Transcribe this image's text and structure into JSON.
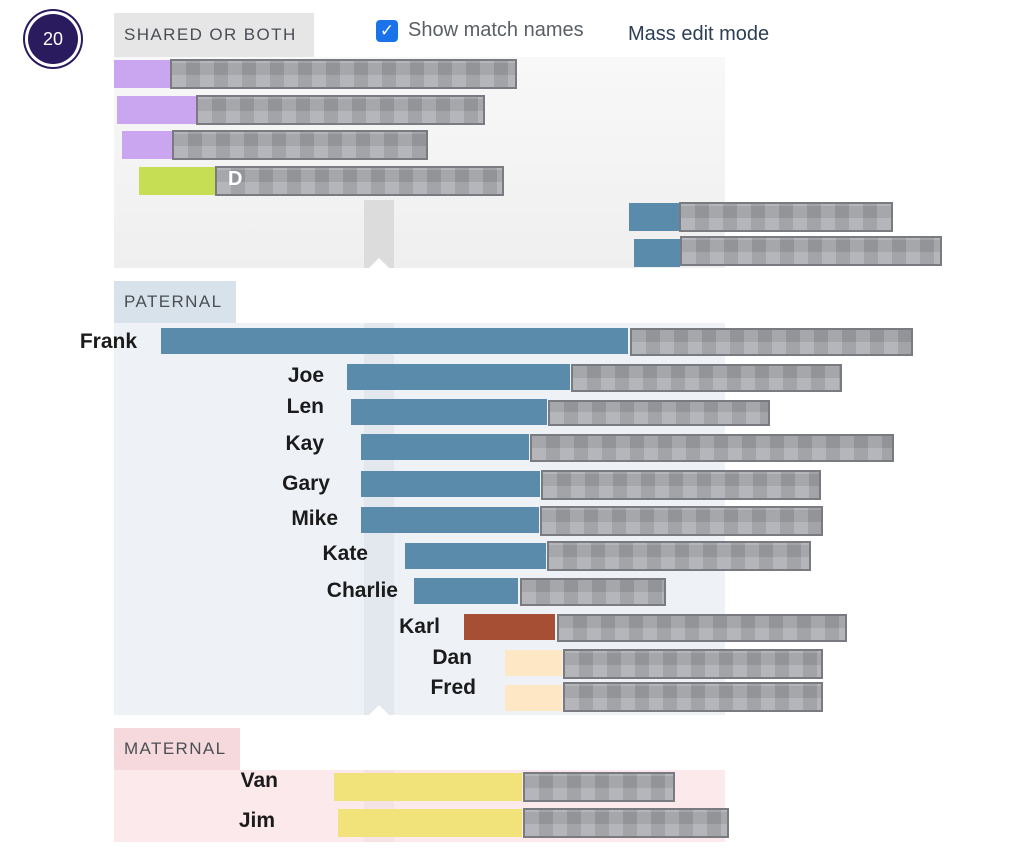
{
  "step_badge": "20",
  "sections": {
    "shared": "SHARED OR BOTH",
    "paternal": "PATERNAL",
    "maternal": "MATERNAL"
  },
  "controls": {
    "show_match_names": "Show match names",
    "show_match_names_checked": true,
    "mass_edit": "Mass edit mode"
  },
  "colors": {
    "paternal_bar": "#5b8bab",
    "shared_purple": "#c9a6ef",
    "shared_green": "#c5de53",
    "karl_bar": "#a64f35",
    "peach_bar": "#fde7c4",
    "maternal_bar": "#f2e27a",
    "blurred": "#a3a5aa"
  },
  "paternal_matches": [
    "Frank",
    "Joe",
    "Len",
    "Kay",
    "Gary",
    "Mike",
    "Kate",
    "Charlie",
    "Karl",
    "Dan",
    "Fred"
  ],
  "maternal_matches": [
    "Van",
    "Jim"
  ],
  "shared_fragment": "D"
}
